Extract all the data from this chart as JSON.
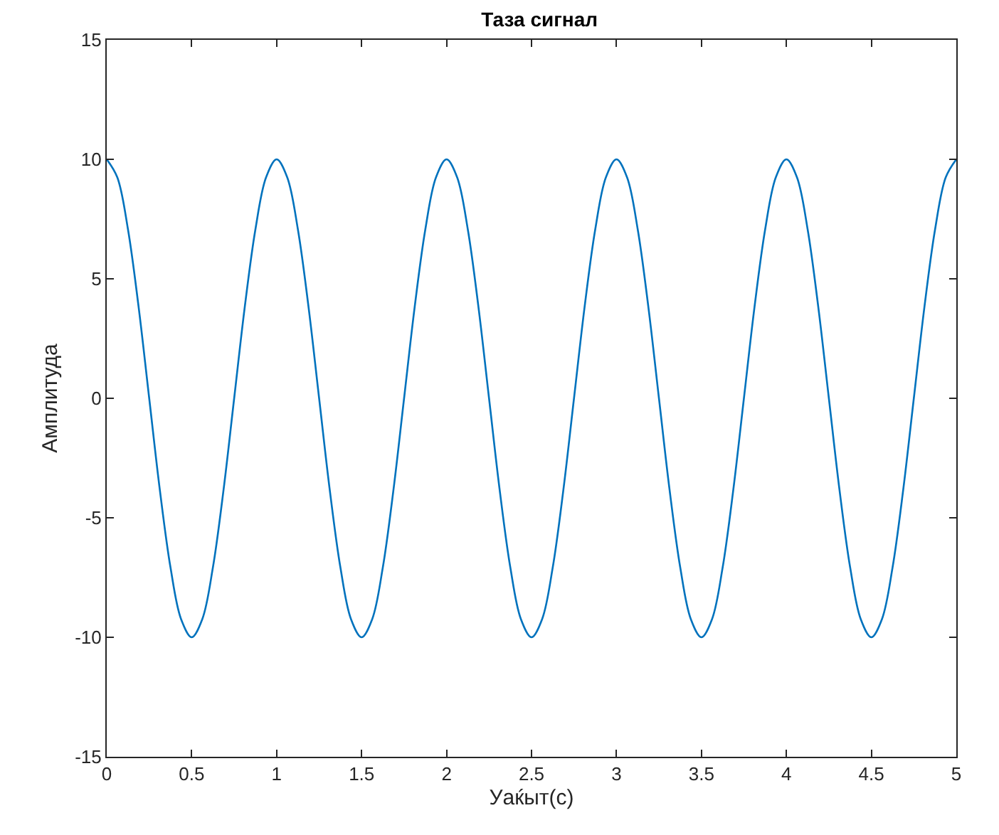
{
  "chart_data": {
    "type": "line",
    "title": "Таза сигнал",
    "xlabel": "Уаќыт(с)",
    "ylabel": "Амплитуда",
    "x": [
      0,
      0.0625,
      0.125,
      0.1875,
      0.25,
      0.3125,
      0.375,
      0.4375,
      0.5,
      0.5625,
      0.625,
      0.6875,
      0.75,
      0.8125,
      0.875,
      0.9375,
      1,
      1.0625,
      1.125,
      1.1875,
      1.25,
      1.3125,
      1.375,
      1.4375,
      1.5,
      1.5625,
      1.625,
      1.6875,
      1.75,
      1.8125,
      1.875,
      1.9375,
      2,
      2.0625,
      2.125,
      2.1875,
      2.25,
      2.3125,
      2.375,
      2.4375,
      2.5,
      2.5625,
      2.625,
      2.6875,
      2.75,
      2.8125,
      2.875,
      2.9375,
      3,
      3.0625,
      3.125,
      3.1875,
      3.25,
      3.3125,
      3.375,
      3.4375,
      3.5,
      3.5625,
      3.625,
      3.6875,
      3.75,
      3.8125,
      3.875,
      3.9375,
      4,
      4.0625,
      4.125,
      4.1875,
      4.25,
      4.3125,
      4.375,
      4.4375,
      4.5,
      4.5625,
      4.625,
      4.6875,
      4.75,
      4.8125,
      4.875,
      4.9375,
      5
    ],
    "series": [
      {
        "color": "#0072bd",
        "values": [
          10,
          9.24,
          7.07,
          3.83,
          0,
          -3.83,
          -7.07,
          -9.24,
          -10,
          -9.24,
          -7.07,
          -3.83,
          0,
          3.83,
          7.07,
          9.24,
          10,
          9.24,
          7.07,
          3.83,
          0,
          -3.83,
          -7.07,
          -9.24,
          -10,
          -9.24,
          -7.07,
          -3.83,
          0,
          3.83,
          7.07,
          9.24,
          10,
          9.24,
          7.07,
          3.83,
          0,
          -3.83,
          -7.07,
          -9.24,
          -10,
          -9.24,
          -7.07,
          -3.83,
          0,
          3.83,
          7.07,
          9.24,
          10,
          9.24,
          7.07,
          3.83,
          0,
          -3.83,
          -7.07,
          -9.24,
          -10,
          -9.24,
          -7.07,
          -3.83,
          0,
          3.83,
          7.07,
          9.24,
          10,
          9.24,
          7.07,
          3.83,
          0,
          -3.83,
          -7.07,
          -9.24,
          -10,
          -9.24,
          -7.07,
          -3.83,
          0,
          3.83,
          7.07,
          9.24,
          10
        ]
      }
    ],
    "xlim": [
      0,
      5
    ],
    "xticks": [
      0,
      0.5,
      1,
      1.5,
      2,
      2.5,
      3,
      3.5,
      4,
      4.5,
      5
    ],
    "ylim": [
      -15,
      15
    ],
    "yticks": [
      -15,
      -10,
      -5,
      0,
      5,
      10,
      15
    ],
    "marker": "none",
    "line_style": "solid"
  }
}
